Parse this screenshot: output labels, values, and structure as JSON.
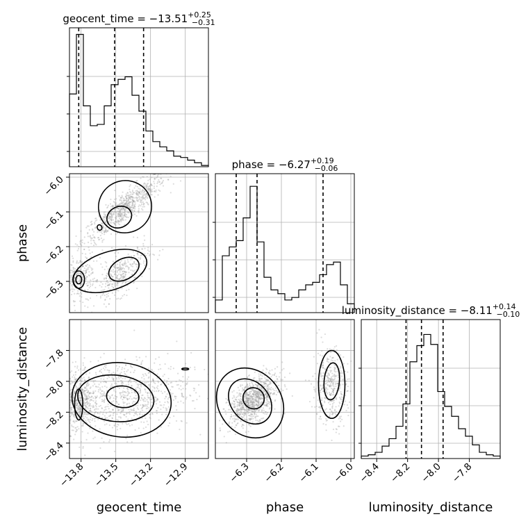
{
  "chart_data": {
    "type": "corner",
    "parameters": [
      {
        "name": "geocent_time",
        "xlabel": "geocent_time",
        "ylabel": "",
        "range": [
          -13.9,
          -12.7
        ],
        "ticks": [
          "-13.8",
          "-13.5",
          "-13.2",
          "-12.9"
        ],
        "tick_values": [
          -13.8,
          -13.5,
          -13.2,
          -12.9
        ],
        "title_prefix": "geocent_time = ",
        "title_value": "−13.51",
        "title_plus": "+0.25",
        "title_minus": "−0.31",
        "quantiles": [
          -13.82,
          -13.51,
          -13.26
        ],
        "hist": [
          0.55,
          1.0,
          0.46,
          0.31,
          0.32,
          0.46,
          0.62,
          0.66,
          0.68,
          0.54,
          0.42,
          0.27,
          0.19,
          0.15,
          0.12,
          0.08,
          0.07,
          0.05,
          0.03,
          0.01
        ],
        "hist_max": 1.05
      },
      {
        "name": "phase",
        "xlabel": "phase",
        "ylabel": "phase",
        "range": [
          -6.39,
          -5.99
        ],
        "ticks": [
          "-6.3",
          "-6.2",
          "-6.1",
          "-6.0"
        ],
        "tick_values": [
          -6.3,
          -6.2,
          -6.1,
          -6.0
        ],
        "y_ticks": [
          "-6.0",
          "-6.1",
          "-6.2",
          "-6.3"
        ],
        "y_tick_values": [
          -6.0,
          -6.1,
          -6.2,
          -6.3
        ],
        "title_prefix": "phase = ",
        "title_value": "−6.27",
        "title_plus": "+0.19",
        "title_minus": "−0.06",
        "quantiles": [
          -6.33,
          -6.27,
          -6.08
        ],
        "hist": [
          0.1,
          0.45,
          0.52,
          0.57,
          0.75,
          1.0,
          0.56,
          0.28,
          0.18,
          0.15,
          0.1,
          0.12,
          0.18,
          0.22,
          0.24,
          0.3,
          0.38,
          0.4,
          0.22,
          0.07
        ],
        "hist_max": 1.1
      },
      {
        "name": "luminosity_distance",
        "xlabel": "luminosity_distance",
        "ylabel": "luminosity_distance",
        "range": [
          -8.5,
          -7.6
        ],
        "ticks": [
          "-8.4",
          "-8.2",
          "-8.0",
          "-7.8"
        ],
        "tick_values": [
          -8.4,
          -8.2,
          -8.0,
          -7.8
        ],
        "y_ticks": [
          "-7.8",
          "-8.0",
          "-8.2",
          "-8.4"
        ],
        "y_tick_values": [
          -7.8,
          -8.0,
          -8.2,
          -8.4
        ],
        "title_prefix": "luminosity_distance = ",
        "title_value": "−8.11",
        "title_plus": "+0.14",
        "title_minus": "−0.10",
        "quantiles": [
          -8.21,
          -8.11,
          -7.97
        ],
        "hist": [
          0.02,
          0.03,
          0.05,
          0.1,
          0.16,
          0.26,
          0.44,
          0.78,
          0.91,
          1.0,
          0.92,
          0.54,
          0.42,
          0.34,
          0.24,
          0.18,
          0.11,
          0.05,
          0.03,
          0.02
        ],
        "hist_max": 1.12
      }
    ],
    "pairs": [
      {
        "x": "geocent_time",
        "y": "phase",
        "modes": [
          {
            "center": [
              -13.43,
              -6.09
            ],
            "sd": [
              0.18,
              0.05
            ],
            "corr": 0.9,
            "weight": 0.55
          },
          {
            "center": [
              -13.82,
              -6.29
            ],
            "sd": [
              0.07,
              0.03
            ],
            "corr": 0.3,
            "weight": 0.2
          },
          {
            "center": [
              -13.45,
              -6.28
            ],
            "sd": [
              0.12,
              0.04
            ],
            "corr": 0.7,
            "weight": 0.25
          }
        ],
        "contours": [
          {
            "center": [
              -13.42,
              -6.085
            ],
            "radii": [
              0.23,
              0.075
            ],
            "angle_deg": -22
          },
          {
            "center": [
              -13.47,
              -6.115
            ],
            "radii": [
              0.11,
              0.03
            ],
            "angle_deg": -25
          },
          {
            "center": [
              -13.64,
              -6.145
            ],
            "radii": [
              0.02,
              0.008
            ],
            "angle_deg": -20
          },
          {
            "center": [
              -13.55,
              -6.27
            ],
            "radii": [
              0.33,
              0.055
            ],
            "angle_deg": -18
          },
          {
            "center": [
              -13.43,
              -6.265
            ],
            "radii": [
              0.14,
              0.03
            ],
            "angle_deg": -28
          },
          {
            "center": [
              -13.82,
              -6.295
            ],
            "radii": [
              0.05,
              0.025
            ],
            "angle_deg": 0
          },
          {
            "center": [
              -13.82,
              -6.295
            ],
            "radii": [
              0.025,
              0.012
            ],
            "angle_deg": 0
          }
        ]
      },
      {
        "x": "geocent_time",
        "y": "luminosity_distance",
        "modes": [
          {
            "center": [
              -13.45,
              -8.1
            ],
            "sd": [
              0.3,
              0.12
            ],
            "corr": 0.2,
            "weight": 0.65
          },
          {
            "center": [
              -13.82,
              -8.12
            ],
            "sd": [
              0.06,
              0.1
            ],
            "corr": 0.0,
            "weight": 0.35
          }
        ],
        "contours": [
          {
            "center": [
              -13.45,
              -8.12
            ],
            "radii": [
              0.43,
              0.24
            ],
            "angle_deg": 8
          },
          {
            "center": [
              -13.5,
              -8.11
            ],
            "radii": [
              0.33,
              0.15
            ],
            "angle_deg": 6
          },
          {
            "center": [
              -13.44,
              -8.1
            ],
            "radii": [
              0.14,
              0.07
            ],
            "angle_deg": 5
          },
          {
            "center": [
              -13.82,
              -8.15
            ],
            "radii": [
              0.035,
              0.1
            ],
            "angle_deg": 0
          },
          {
            "center": [
              -12.9,
              -7.92
            ],
            "radii": [
              0.03,
              0.006
            ],
            "angle_deg": 0
          }
        ]
      },
      {
        "x": "phase",
        "y": "luminosity_distance",
        "modes": [
          {
            "center": [
              -6.28,
              -8.12
            ],
            "sd": [
              0.035,
              0.08
            ],
            "corr": 0.55,
            "weight": 0.7
          },
          {
            "center": [
              -6.06,
              -8.03
            ],
            "sd": [
              0.025,
              0.12
            ],
            "corr": 0.0,
            "weight": 0.3
          }
        ],
        "contours": [
          {
            "center": [
              -6.29,
              -8.14
            ],
            "radii": [
              0.09,
              0.24
            ],
            "angle_deg": -38
          },
          {
            "center": [
              -6.29,
              -8.13
            ],
            "radii": [
              0.055,
              0.16
            ],
            "angle_deg": -40
          },
          {
            "center": [
              -6.28,
              -8.11
            ],
            "radii": [
              0.03,
              0.07
            ],
            "angle_deg": -45
          },
          {
            "center": [
              -6.055,
              -8.02
            ],
            "radii": [
              0.038,
              0.22
            ],
            "angle_deg": 0
          },
          {
            "center": [
              -6.055,
              -8.0
            ],
            "radii": [
              0.022,
              0.12
            ],
            "angle_deg": 5
          }
        ]
      }
    ]
  }
}
